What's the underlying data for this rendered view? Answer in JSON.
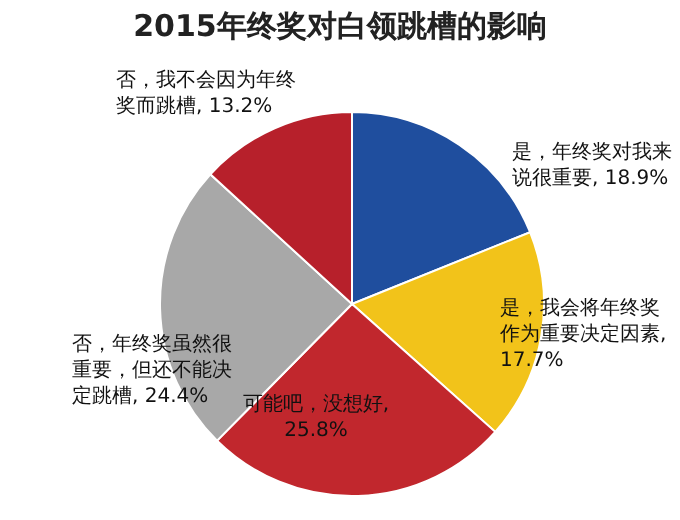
{
  "chart_data": {
    "type": "pie",
    "title": "2015年终奖对白领跳槽的影响",
    "categories": [
      "是，年终奖对我来说很重要",
      "是，我会将年终奖作为重要决定因素",
      "可能吧，没想好",
      "否，年终奖虽然很重要，但还不能决定跳槽",
      "否，我不会因为年终奖而跳槽"
    ],
    "values": [
      18.9,
      17.7,
      25.8,
      24.4,
      13.2
    ],
    "value_labels": [
      ", 18.9%",
      ", 17.7%",
      ", 25.8%",
      ", 24.4%",
      ", 13.2%"
    ],
    "colors": [
      "#1f4e9e",
      "#f2c31a",
      "#c1272d",
      "#a8a8a8",
      "#b7202b"
    ]
  }
}
